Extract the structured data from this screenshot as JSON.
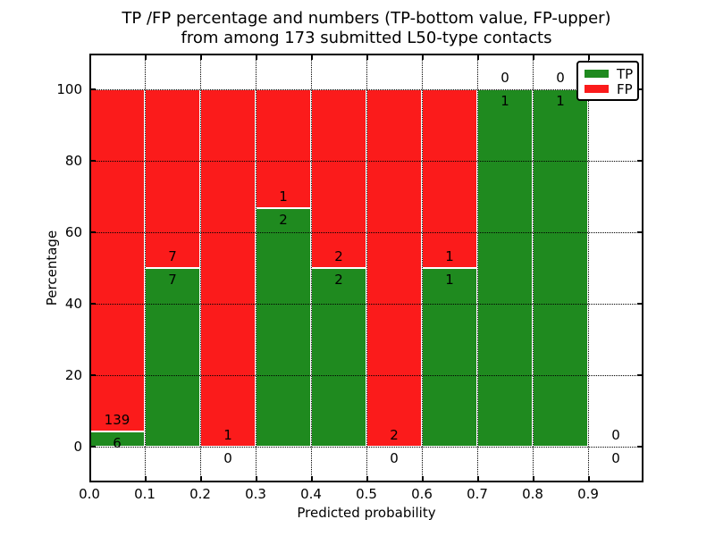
{
  "title": {
    "line1": "TP /FP percentage and numbers (TP-bottom value, FP-upper)",
    "line2": "from among 173 submitted L50-type contacts"
  },
  "chart_data": {
    "type": "bar",
    "stacked": true,
    "title": "TP /FP percentage and numbers (TP-bottom value, FP-upper) from among 173 submitted L50-type contacts",
    "xlabel": "Predicted probability",
    "ylabel": "Percentage",
    "xlim": [
      0.0,
      1.0
    ],
    "ylim": [
      -10,
      110
    ],
    "x_tick_labels": [
      "0.0",
      "0.1",
      "0.2",
      "0.3",
      "0.4",
      "0.5",
      "0.6",
      "0.7",
      "0.8",
      "0.9"
    ],
    "x_tick_values": [
      0.0,
      0.1,
      0.2,
      0.3,
      0.4,
      0.5,
      0.6,
      0.7,
      0.8,
      0.9
    ],
    "y_tick_values": [
      0,
      20,
      40,
      60,
      80,
      100
    ],
    "grid": "dotted",
    "legend": {
      "position": "upper right",
      "entries": [
        {
          "label": "TP",
          "color_key": "tp"
        },
        {
          "label": "FP",
          "color_key": "fp"
        }
      ]
    },
    "colors": {
      "tp": "#1f8a1f",
      "fp": "#fb1b1b",
      "bar_edge": "#ffffff"
    },
    "total_contacts": 173,
    "bins": [
      {
        "x_start": 0.0,
        "x_end": 0.1,
        "tp": 6,
        "fp": 139
      },
      {
        "x_start": 0.1,
        "x_end": 0.2,
        "tp": 7,
        "fp": 7
      },
      {
        "x_start": 0.2,
        "x_end": 0.3,
        "tp": 0,
        "fp": 1
      },
      {
        "x_start": 0.3,
        "x_end": 0.4,
        "tp": 2,
        "fp": 1
      },
      {
        "x_start": 0.4,
        "x_end": 0.5,
        "tp": 2,
        "fp": 2
      },
      {
        "x_start": 0.5,
        "x_end": 0.6,
        "tp": 0,
        "fp": 2
      },
      {
        "x_start": 0.6,
        "x_end": 0.7,
        "tp": 1,
        "fp": 1
      },
      {
        "x_start": 0.7,
        "x_end": 0.8,
        "tp": 1,
        "fp": 0
      },
      {
        "x_start": 0.8,
        "x_end": 0.9,
        "tp": 1,
        "fp": 0
      },
      {
        "x_start": 0.9,
        "x_end": 1.0,
        "tp": 0,
        "fp": 0
      }
    ]
  }
}
